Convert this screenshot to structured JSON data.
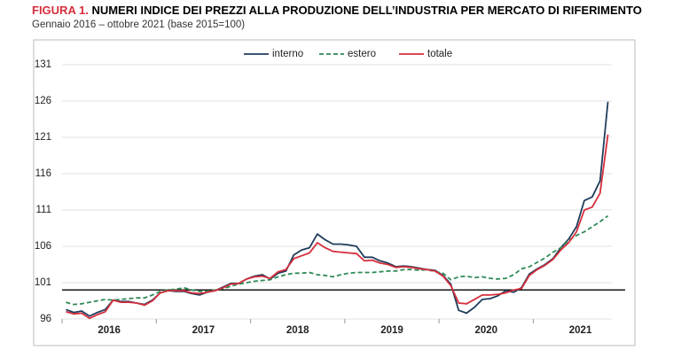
{
  "chart_data": {
    "type": "line",
    "title_label": "FIGURA 1.",
    "title": "NUMERI INDICE DEI PREZZI ALLA PRODUZIONE DELL’INDUSTRIA PER MERCATO DI RIFERIMENTO",
    "subtitle": "Gennaio 2016 – ottobre 2021 (base 2015=100)",
    "categories": [
      null,
      null,
      null,
      null,
      null,
      null,
      "2016",
      null,
      null,
      null,
      null,
      null,
      null,
      null,
      null,
      null,
      null,
      null,
      "2017",
      null,
      null,
      null,
      null,
      null,
      null,
      null,
      null,
      null,
      null,
      null,
      "2018",
      null,
      null,
      null,
      null,
      null,
      null,
      null,
      null,
      null,
      null,
      null,
      "2019",
      null,
      null,
      null,
      null,
      null,
      null,
      null,
      null,
      null,
      null,
      null,
      "2020",
      null,
      null,
      null,
      null,
      null,
      null,
      null,
      null,
      null,
      null,
      null,
      "2021",
      null,
      null,
      null
    ],
    "series": [
      {
        "name": "interno",
        "color": "#1f3d5c",
        "style": "solid",
        "values": [
          97.3,
          96.9,
          97.1,
          96.4,
          96.9,
          97.3,
          98.6,
          98.4,
          98.4,
          98.2,
          98.0,
          98.6,
          99.6,
          99.9,
          99.8,
          99.8,
          99.5,
          99.3,
          99.7,
          99.9,
          100.4,
          100.9,
          100.9,
          101.5,
          101.9,
          102.1,
          101.5,
          102.3,
          102.6,
          104.8,
          105.5,
          105.8,
          107.7,
          106.9,
          106.3,
          106.3,
          106.2,
          106.0,
          104.5,
          104.5,
          104.0,
          103.7,
          103.2,
          103.3,
          103.2,
          103.0,
          102.8,
          102.7,
          102.0,
          100.8,
          97.2,
          96.8,
          97.6,
          98.7,
          98.8,
          99.2,
          99.9,
          99.7,
          100.3,
          102.2,
          102.9,
          103.5,
          104.3,
          105.8,
          107.0,
          108.7,
          112.3,
          112.8,
          115.0,
          125.9
        ]
      },
      {
        "name": "estero",
        "color": "#2e8b57",
        "style": "dashed",
        "values": [
          98.3,
          98.0,
          98.1,
          98.3,
          98.5,
          98.7,
          98.6,
          98.7,
          98.8,
          98.9,
          98.9,
          99.3,
          99.8,
          100.0,
          100.1,
          100.3,
          100.0,
          99.8,
          99.8,
          100.0,
          100.2,
          100.5,
          100.8,
          101.0,
          101.2,
          101.3,
          101.4,
          101.8,
          102.1,
          102.3,
          102.3,
          102.4,
          102.1,
          102.0,
          101.8,
          102.1,
          102.3,
          102.4,
          102.4,
          102.4,
          102.5,
          102.6,
          102.6,
          102.8,
          102.8,
          102.7,
          102.8,
          102.5,
          102.3,
          101.4,
          101.8,
          101.9,
          101.7,
          101.8,
          101.6,
          101.5,
          101.6,
          102.1,
          102.9,
          103.2,
          103.8,
          104.4,
          105.2,
          105.8,
          106.8,
          107.5,
          108.0,
          108.7,
          109.4,
          110.2
        ]
      },
      {
        "name": "totale",
        "color": "#d62e3c",
        "style": "solid",
        "values": [
          97.0,
          96.7,
          96.8,
          96.1,
          96.6,
          97.0,
          98.6,
          98.3,
          98.3,
          98.2,
          97.9,
          98.5,
          99.6,
          99.9,
          99.9,
          99.9,
          99.6,
          99.5,
          99.7,
          99.9,
          100.3,
          100.8,
          100.9,
          101.5,
          101.8,
          101.9,
          101.6,
          102.5,
          102.8,
          104.3,
          104.7,
          105.1,
          106.5,
          105.8,
          105.3,
          105.2,
          105.1,
          105.0,
          104.0,
          104.1,
          103.7,
          103.5,
          103.1,
          103.2,
          103.1,
          102.9,
          102.8,
          102.6,
          101.9,
          100.6,
          98.2,
          98.1,
          98.7,
          99.3,
          99.3,
          99.4,
          99.6,
          100.0,
          100.2,
          102.0,
          102.8,
          103.4,
          104.2,
          105.5,
          106.5,
          108.0,
          111.0,
          111.4,
          113.3,
          121.4
        ]
      }
    ],
    "ylim": [
      96,
      131
    ],
    "yticks": [
      96,
      101,
      106,
      111,
      116,
      121,
      126,
      131
    ],
    "reference_line": 100,
    "legend": "top"
  }
}
